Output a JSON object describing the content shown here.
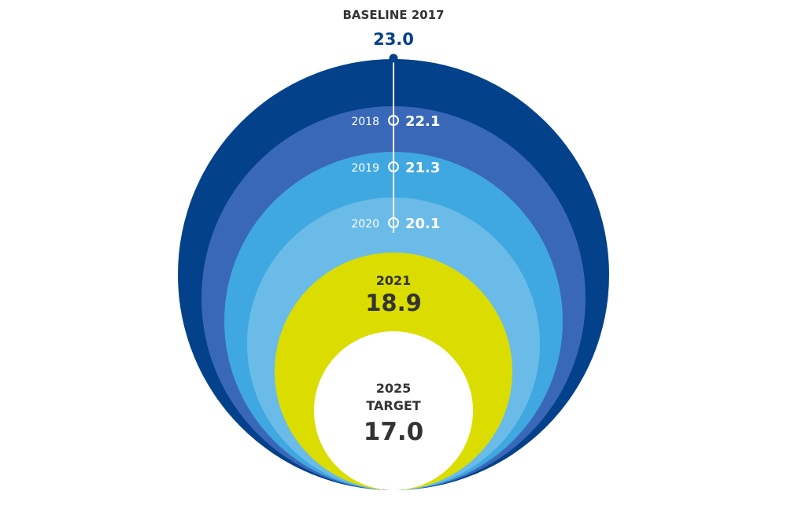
{
  "chart_data": {
    "type": "nested-circles",
    "series": [
      {
        "year_label": "BASELINE 2017",
        "value": "23.0",
        "numeric": 23.0,
        "color": "#03418a"
      },
      {
        "year_label": "2018",
        "value": "22.1",
        "numeric": 22.1,
        "color": "#3a68b8"
      },
      {
        "year_label": "2019",
        "value": "21.3",
        "numeric": 21.3,
        "color": "#40a8e0"
      },
      {
        "year_label": "2020",
        "value": "20.1",
        "numeric": 20.1,
        "color": "#6bbbe8"
      },
      {
        "year_label": "2021",
        "value": "18.9",
        "numeric": 18.9,
        "color": "#dbdd00"
      },
      {
        "year_label": "2025",
        "year_label_line2": "TARGET",
        "value": "17.0",
        "numeric": 17.0,
        "color": "#ffffff"
      }
    ]
  },
  "colors": {
    "baseline_text": "#03418a",
    "dark_text": "#333333",
    "light_text": "#ffffff",
    "axis_line": "#ffffff"
  }
}
